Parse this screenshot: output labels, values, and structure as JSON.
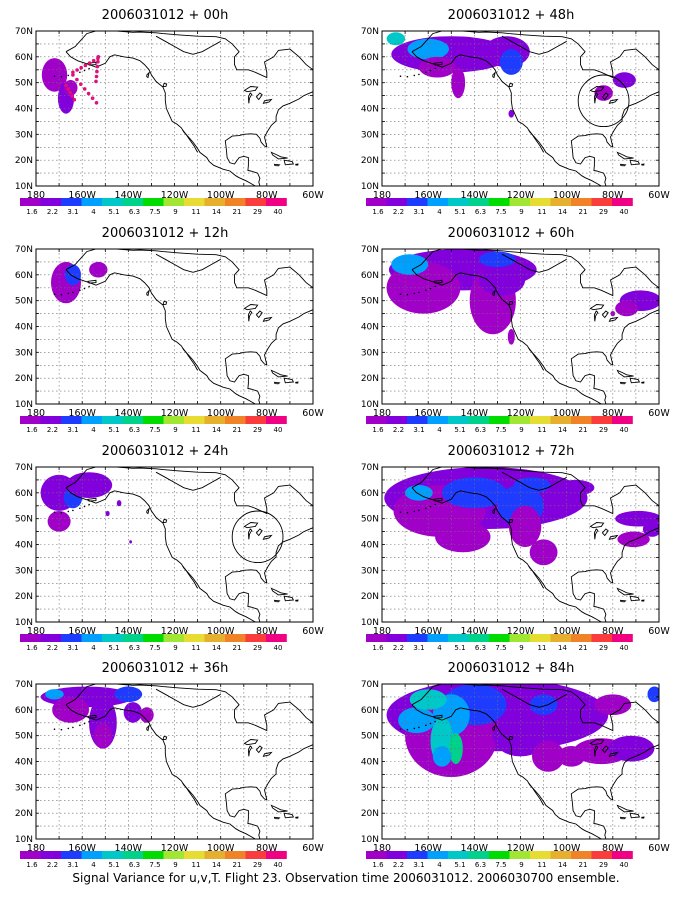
{
  "panels": [
    {
      "title": "2006031012 + 00h"
    },
    {
      "title": "2006031012 + 48h"
    },
    {
      "title": "2006031012 + 12h"
    },
    {
      "title": "2006031012 + 60h"
    },
    {
      "title": "2006031012 + 24h"
    },
    {
      "title": "2006031012 + 72h"
    },
    {
      "title": "2006031012 + 36h"
    },
    {
      "title": "2006031012 + 84h"
    }
  ],
  "lat_labels": [
    "70N",
    "60N",
    "50N",
    "40N",
    "30N",
    "20N",
    "10N"
  ],
  "lon_labels": [
    "180",
    "160W",
    "140W",
    "120W",
    "100W",
    "80W",
    "60W"
  ],
  "colorbar": {
    "labels": [
      "1.6",
      "2.2",
      "3.1",
      "4",
      "5.1",
      "6.3",
      "7.5",
      "9",
      "11",
      "14",
      "21",
      "29",
      "40"
    ],
    "colors": [
      "#a000c8",
      "#8200dc",
      "#1e3cff",
      "#00a0ff",
      "#00c8c8",
      "#00d28c",
      "#00dc00",
      "#a0e632",
      "#e6dc32",
      "#e6af2d",
      "#f08228",
      "#fa3c3c",
      "#f00082"
    ]
  },
  "footer": "Signal Variance for u,v,T. Flight 23. Observation time 2006031012. 2006030700 ensemble."
}
